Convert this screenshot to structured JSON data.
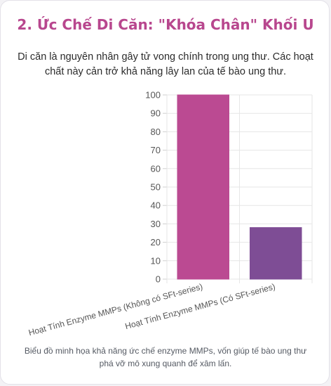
{
  "card": {
    "title": "2. Ức Chế Di Căn: \"Khóa Chân\" Khối U",
    "description": "Di căn là nguyên nhân gây tử vong chính trong ung thư. Các hoạt chất này cản trở khả năng lây lan của tế bào ung thư.",
    "caption": "Biểu đồ minh họa khả năng ức chế enzyme MMPs, vốn giúp tế bào ung thư phá vỡ mô xung quanh để xâm lấn."
  },
  "chart_data": {
    "type": "bar",
    "categories": [
      "Hoạt Tính Enzyme MMPs (Không có SFt-series)",
      "Hoạt Tính Enzyme MMPs (Có SFt-series)"
    ],
    "values": [
      100,
      28
    ],
    "colors": [
      "#bb4a92",
      "#7e4d95"
    ],
    "ylim": [
      0,
      100
    ],
    "yticks": [
      0,
      10,
      20,
      30,
      40,
      50,
      60,
      70,
      80,
      90,
      100
    ],
    "grid": true,
    "legend": "none"
  }
}
